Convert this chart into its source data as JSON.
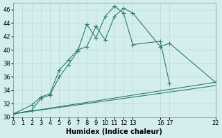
{
  "xlabel": "Humidex (Indice chaleur)",
  "bg_color": "#d4eeee",
  "grid_color": "#b8d8d8",
  "line_color": "#2d7a6e",
  "xlim": [
    0,
    22
  ],
  "ylim": [
    30,
    47
  ],
  "xticks": [
    0,
    1,
    2,
    3,
    4,
    5,
    6,
    7,
    8,
    9,
    10,
    11,
    12,
    13,
    16,
    17,
    22
  ],
  "yticks": [
    30,
    32,
    34,
    36,
    38,
    40,
    42,
    44,
    46
  ],
  "s1x": [
    0,
    2,
    3,
    4,
    5,
    6,
    7,
    8,
    9,
    10,
    11,
    12,
    13,
    16,
    17,
    22
  ],
  "s1y": [
    30.5,
    31.8,
    33.0,
    33.5,
    37.0,
    38.5,
    40.0,
    40.5,
    43.5,
    41.5,
    45.0,
    46.2,
    45.5,
    40.5,
    41.0,
    35.2
  ],
  "s2x": [
    0,
    2,
    3,
    4,
    5,
    6,
    7,
    8,
    9,
    10,
    11,
    12,
    13,
    16,
    17
  ],
  "s2y": [
    30.5,
    31.0,
    32.8,
    33.3,
    36.0,
    37.8,
    39.8,
    43.8,
    41.8,
    45.0,
    46.5,
    45.5,
    40.8,
    41.3,
    35.0
  ],
  "s3x": [
    0,
    22
  ],
  "s3y": [
    30.5,
    35.2
  ],
  "s4x": [
    0,
    22
  ],
  "s4y": [
    30.5,
    34.7
  ]
}
